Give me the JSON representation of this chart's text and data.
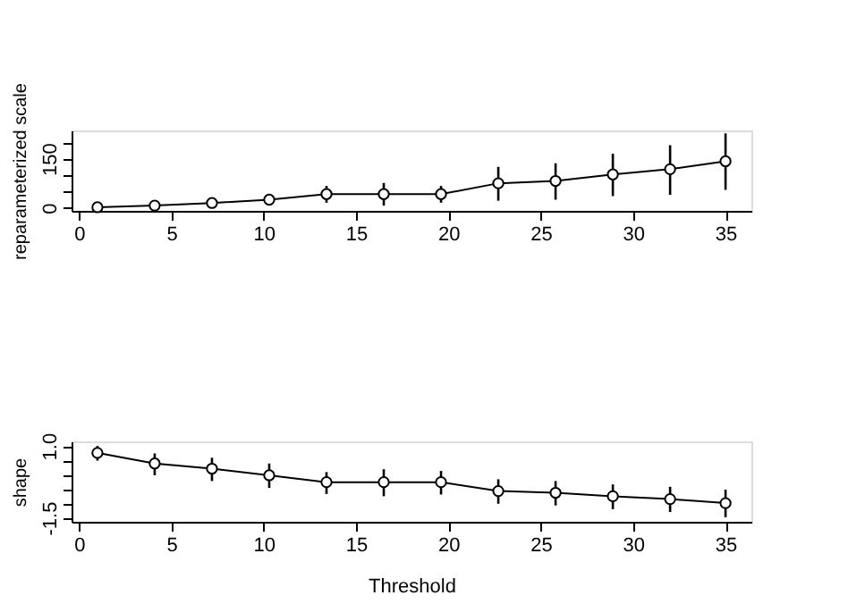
{
  "chart_data": [
    {
      "type": "line",
      "ylabel": "reparameterized scale",
      "x": [
        1,
        4.1,
        7.2,
        10.3,
        13.4,
        16.5,
        19.6,
        22.7,
        25.8,
        28.9,
        32,
        35
      ],
      "values": [
        2,
        7,
        15,
        25,
        42,
        42,
        42,
        75,
        82,
        102,
        118,
        142
      ],
      "errors": [
        null,
        null,
        null,
        null,
        [
          16,
          67
        ],
        [
          7,
          76
        ],
        [
          16,
          67
        ],
        [
          22,
          125
        ],
        [
          25,
          136
        ],
        [
          36,
          165
        ],
        [
          40,
          191
        ],
        [
          55,
          227
        ]
      ],
      "xlim": [
        -0.4,
        36.4
      ],
      "xticks": [
        0,
        5,
        10,
        15,
        20,
        25,
        30,
        35
      ],
      "ylim": [
        -9,
        236
      ],
      "yticks": [
        0,
        {
          "value": 50,
          "label": null
        },
        {
          "value": 100,
          "label": null
        },
        150,
        {
          "value": 200,
          "label": null
        }
      ],
      "marker": "circle",
      "line_style": "solid",
      "grid": false
    },
    {
      "type": "line",
      "xlabel": "Threshold",
      "ylabel": "shape",
      "x": [
        1,
        4.1,
        7.2,
        10.3,
        13.4,
        16.5,
        19.6,
        22.7,
        25.8,
        28.9,
        32,
        35
      ],
      "values": [
        0.76,
        0.39,
        0.21,
        -0.02,
        -0.26,
        -0.26,
        -0.26,
        -0.57,
        -0.63,
        -0.75,
        -0.85,
        -0.99
      ],
      "errors": [
        [
          0.49,
          1.0
        ],
        [
          -0.02,
          0.74
        ],
        [
          -0.22,
          0.59
        ],
        [
          -0.46,
          0.39
        ],
        [
          -0.67,
          0.09
        ],
        [
          -0.75,
          0.19
        ],
        [
          -0.69,
          0.13
        ],
        [
          -1.01,
          -0.16
        ],
        [
          -1.07,
          -0.22
        ],
        [
          -1.2,
          -0.34
        ],
        [
          -1.3,
          -0.42
        ],
        [
          -1.48,
          -0.52
        ]
      ],
      "xlim": [
        -0.4,
        36.4
      ],
      "xticks": [
        0,
        5,
        10,
        15,
        20,
        25,
        30,
        35
      ],
      "ylim": [
        -1.64,
        1.16
      ],
      "yticks": [
        {
          "value": -1.5,
          "label": "-1.5"
        },
        {
          "value": -1.0,
          "label": null
        },
        {
          "value": -0.5,
          "label": null
        },
        {
          "value": 0,
          "label": null
        },
        {
          "value": 0.5,
          "label": null
        },
        {
          "value": 1.0,
          "label": "1.0"
        }
      ],
      "marker": "circle",
      "line_style": "solid",
      "grid": false
    }
  ]
}
